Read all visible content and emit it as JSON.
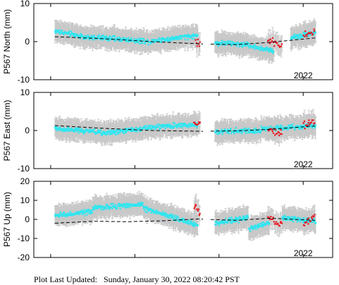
{
  "footer": {
    "prefix": "Plot Last Updated:",
    "timestamp": "Sunday, January 30, 2022 08:20:42 PST"
  },
  "colors": {
    "primary_points": "#2ee6f0",
    "recent_points": "#e8141e",
    "error_bars": "#c8c8c8",
    "trend": "#000000"
  },
  "chart_data": [
    {
      "type": "scatter",
      "ylabel": "P567 North (mm)",
      "ylim": [
        -10,
        10
      ],
      "yticks": [
        -10,
        0,
        10
      ],
      "xtick_labels": [
        "2022"
      ],
      "trend": {
        "x": [
          2019.05,
          2019.6,
          2020.2,
          2020.8,
          2021.2,
          2021.6,
          2022.15
        ],
        "y": [
          1.3,
          0.8,
          0.0,
          -0.6,
          -0.8,
          -0.2,
          1.0
        ]
      },
      "cyan_clusters": [
        {
          "x0": 2019.05,
          "x1": 2019.5,
          "y0": 2.8,
          "y1": 0.8
        },
        {
          "x0": 2019.5,
          "x1": 2020.2,
          "y0": 1.2,
          "y1": 0.0
        },
        {
          "x0": 2020.2,
          "x1": 2020.75,
          "y0": 0.2,
          "y1": 1.6
        },
        {
          "x0": 2020.95,
          "x1": 2021.35,
          "y0": -0.3,
          "y1": -0.8
        },
        {
          "x0": 2021.35,
          "x1": 2021.65,
          "y0": -1.0,
          "y1": -2.5
        },
        {
          "x0": 2021.85,
          "x1": 2022.15,
          "y0": 1.0,
          "y1": 2.5
        }
      ],
      "red_clusters": [
        {
          "x0": 2020.72,
          "x1": 2020.78,
          "y0": -0.3,
          "y1": -0.7
        },
        {
          "x0": 2021.58,
          "x1": 2021.75,
          "y0": 0.5,
          "y1": -1.0
        },
        {
          "x0": 2022.0,
          "x1": 2022.14,
          "y0": 1.5,
          "y1": 2.5
        }
      ]
    },
    {
      "type": "scatter",
      "ylabel": "P567 East (mm)",
      "ylim": [
        -10,
        10
      ],
      "yticks": [
        -10,
        0,
        10
      ],
      "xtick_labels": [
        "2022"
      ],
      "trend": {
        "x": [
          2019.05,
          2019.6,
          2020.2,
          2020.8,
          2021.2,
          2021.6,
          2022.15
        ],
        "y": [
          1.3,
          0.6,
          0.0,
          -0.2,
          -0.1,
          0.3,
          1.2
        ]
      },
      "cyan_clusters": [
        {
          "x0": 2019.05,
          "x1": 2019.6,
          "y0": 0.5,
          "y1": -0.5
        },
        {
          "x0": 2019.6,
          "x1": 2020.1,
          "y0": -0.8,
          "y1": 0.5
        },
        {
          "x0": 2020.1,
          "x1": 2020.75,
          "y0": 0.8,
          "y1": 1.5
        },
        {
          "x0": 2020.95,
          "x1": 2021.5,
          "y0": -0.3,
          "y1": 0.0
        },
        {
          "x0": 2021.5,
          "x1": 2022.15,
          "y0": 0.4,
          "y1": 1.2
        }
      ],
      "red_clusters": [
        {
          "x0": 2020.7,
          "x1": 2020.78,
          "y0": 1.8,
          "y1": 2.4
        },
        {
          "x0": 2021.58,
          "x1": 2021.75,
          "y0": 0.5,
          "y1": -1.0
        },
        {
          "x0": 2022.0,
          "x1": 2022.14,
          "y0": 1.5,
          "y1": 2.6
        }
      ]
    },
    {
      "type": "scatter",
      "ylabel": "P567 Up (mm)",
      "ylim": [
        -20,
        20
      ],
      "yticks": [
        -20,
        -10,
        0,
        10,
        20
      ],
      "xtick_labels": [
        "2022"
      ],
      "trend": {
        "x": [
          2019.05,
          2019.5,
          2019.9,
          2020.3,
          2020.75,
          2021.2,
          2021.6,
          2022.15
        ],
        "y": [
          -2.0,
          -1.0,
          -1.2,
          -0.8,
          0.2,
          -0.5,
          0.6,
          -0.5
        ]
      },
      "cyan_clusters": [
        {
          "x0": 2019.05,
          "x1": 2019.5,
          "y0": 2.0,
          "y1": 4.0
        },
        {
          "x0": 2019.5,
          "x1": 2020.1,
          "y0": 6.0,
          "y1": 8.0
        },
        {
          "x0": 2020.1,
          "x1": 2020.75,
          "y0": 6.0,
          "y1": -3.0
        },
        {
          "x0": 2020.95,
          "x1": 2021.35,
          "y0": -2.0,
          "y1": 1.0
        },
        {
          "x0": 2021.35,
          "x1": 2021.6,
          "y0": -5.0,
          "y1": -2.0
        },
        {
          "x0": 2021.75,
          "x1": 2022.15,
          "y0": 1.0,
          "y1": -1.0
        }
      ],
      "red_clusters": [
        {
          "x0": 2020.7,
          "x1": 2020.78,
          "y0": 8.0,
          "y1": 3.0
        },
        {
          "x0": 2021.58,
          "x1": 2021.75,
          "y0": 1.0,
          "y1": -3.0
        },
        {
          "x0": 2022.0,
          "x1": 2022.14,
          "y0": -3.0,
          "y1": 2.0
        }
      ]
    }
  ]
}
